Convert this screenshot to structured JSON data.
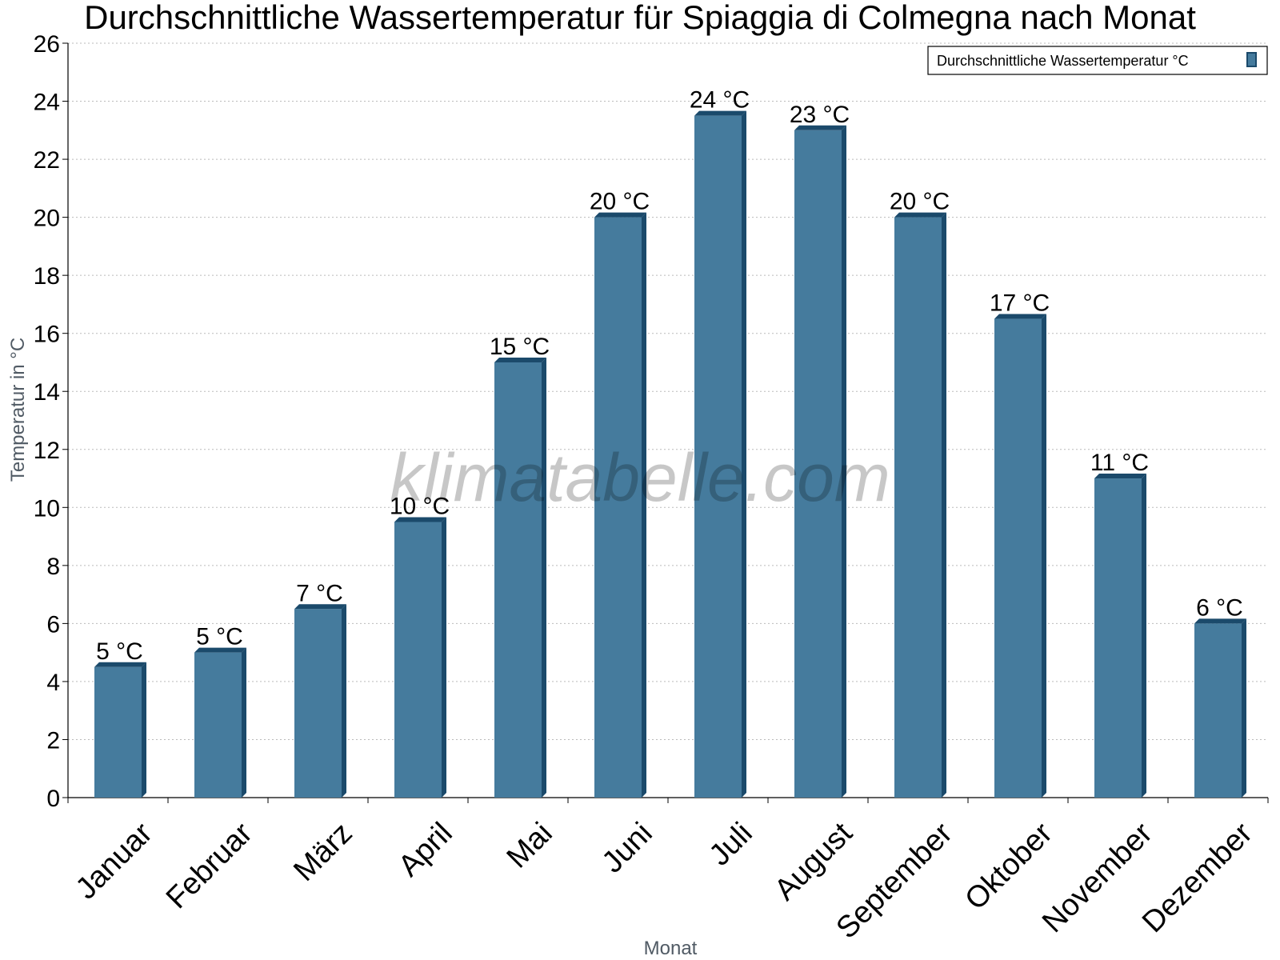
{
  "chart_data": {
    "type": "bar",
    "title": "Durchschnittliche Wassertemperatur für Spiaggia di Colmegna nach Monat",
    "xlabel": "Monat",
    "ylabel": "Temperatur in °C",
    "ylim": [
      0,
      26
    ],
    "yticks": [
      0,
      2,
      4,
      6,
      8,
      10,
      12,
      14,
      16,
      18,
      20,
      22,
      24,
      26
    ],
    "grid": true,
    "legend_position": "top-right",
    "categories": [
      "Januar",
      "Februar",
      "März",
      "April",
      "Mai",
      "Juni",
      "Juli",
      "August",
      "September",
      "Oktober",
      "November",
      "Dezember"
    ],
    "series": [
      {
        "name": "Durchschnittliche Wassertemperatur °C",
        "values": [
          4.5,
          5.0,
          6.5,
          9.5,
          15.0,
          20.0,
          23.5,
          23.0,
          20.0,
          16.5,
          11.0,
          6.0
        ],
        "labels": [
          "5 °C",
          "5 °C",
          "7 °C",
          "10 °C",
          "15 °C",
          "20 °C",
          "24 °C",
          "23 °C",
          "20 °C",
          "17 °C",
          "11 °C",
          "6 °C"
        ],
        "color": "#457b9d",
        "edge_color": "#1b4a6b"
      }
    ],
    "watermark": "klimatabelle.com"
  }
}
